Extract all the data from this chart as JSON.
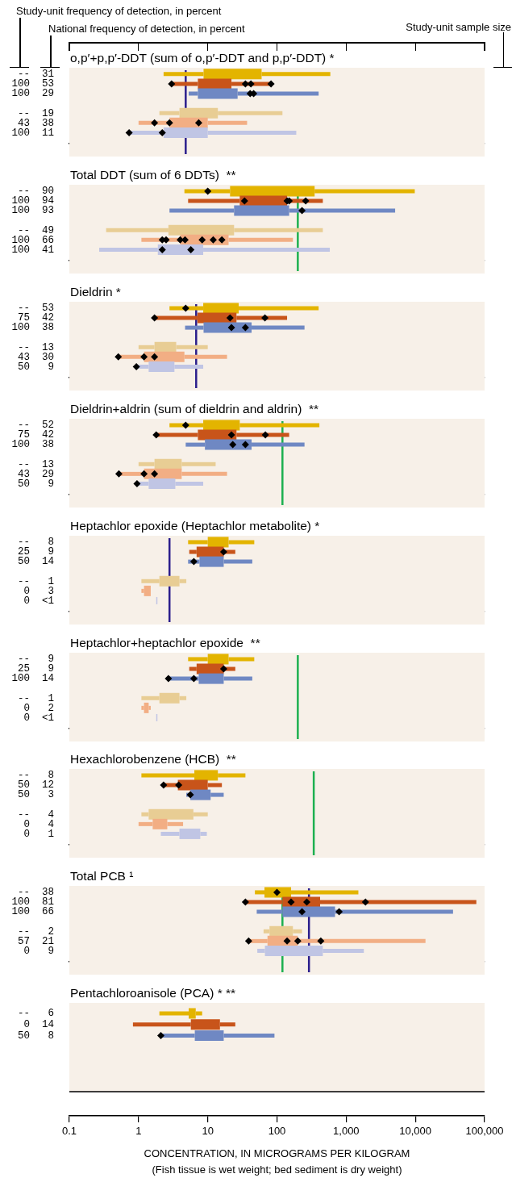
{
  "chart_data": [
    {
      "type": "box",
      "orientation": "horizontal",
      "log": "x",
      "tick_labels": "y",
      "title": "o,p′+p,p′-DDT (sum of o,p′-DDT and p,p′-DDT) *",
      "annotations": [
        "Study-unit frequency of detection, in percent",
        "National frequency of detection, in percent",
        "Study-unit sample size"
      ],
      "xlim": [
        0.1,
        100000
      ],
      "categories": [
        "--  31",
        "100  53",
        "100  29",
        null,
        "--  19",
        "43  38",
        "100  11"
      ],
      "colors": [
        "#e3b400",
        "#c8541a",
        "#6f88c3",
        null,
        "#e8cd94",
        "#f2ae84",
        "#c0c5e4"
      ],
      "boxes": [
        {
          "low": 2.3,
          "q1": 8.7,
          "q3": 60,
          "high": 590
        },
        {
          "low": 2.9,
          "q1": 7.2,
          "q3": 22,
          "high": 82
        },
        {
          "low": 5.3,
          "q1": 7.2,
          "q3": 27,
          "high": 400
        },
        null,
        {
          "low": 2.0,
          "q1": 3.9,
          "q3": 14,
          "high": 120
        },
        {
          "low": 1.0,
          "q1": 2.8,
          "q3": 10,
          "high": 37
        },
        {
          "low": 0.73,
          "q1": 2.3,
          "q3": 10,
          "high": 190
        }
      ],
      "series": [
        {
          "type": "scatter",
          "marker": "diamond",
          "color": "#000000",
          "x": [
            "100  53",
            "100  53",
            "100  53",
            "100  53",
            "100  29",
            "100  29",
            "43  38",
            "43  38",
            "43  38",
            "100  11",
            "100  11"
          ],
          "values": [
            3.0,
            35,
            42,
            82,
            41,
            46,
            1.7,
            2.8,
            7.4,
            0.73,
            2.2
          ]
        }
      ],
      "ref_lines": [
        {
          "axis": "x",
          "value": 4.8,
          "color": "#2b1e8c"
        }
      ]
    },
    {
      "type": "box",
      "orientation": "horizontal",
      "log": "x",
      "tick_labels": "y",
      "title": "Total DDT (sum of 6 DDTs)  **",
      "xlim": [
        0.1,
        100000
      ],
      "categories": [
        "--  90",
        "100  94",
        "100  93",
        null,
        "--  49",
        "100  66",
        "100  41"
      ],
      "colors": [
        "#e3b400",
        "#c8541a",
        "#6f88c3",
        null,
        "#e8cd94",
        "#f2ae84",
        "#c0c5e4"
      ],
      "boxes": [
        {
          "low": 4.6,
          "q1": 21,
          "q3": 350,
          "high": 9800
        },
        {
          "low": 5.2,
          "q1": 29,
          "q3": 140,
          "high": 460
        },
        {
          "low": 2.8,
          "q1": 24,
          "q3": 150,
          "high": 5100
        },
        null,
        {
          "low": 0.34,
          "q1": 2.7,
          "q3": 24,
          "high": 460
        },
        {
          "low": 1.1,
          "q1": 4.0,
          "q3": 20,
          "high": 170
        },
        {
          "low": 0.27,
          "q1": 1.9,
          "q3": 8.6,
          "high": 580
        }
      ],
      "series": [
        {
          "type": "scatter",
          "marker": "diamond",
          "color": "#000000",
          "x": [
            "--  90",
            "100  94",
            "100  94",
            "100  94",
            "100  94",
            "100  93",
            "100  66",
            "100  66",
            "100  66",
            "100  66",
            "100  66",
            "100  66",
            "100  66",
            "100  41",
            "100  41"
          ],
          "values": [
            10,
            34,
            140,
            150,
            260,
            230,
            2.2,
            2.5,
            4.0,
            4.7,
            8.3,
            12,
            16,
            2.2,
            5.7
          ]
        }
      ],
      "ref_lines": [
        {
          "axis": "x",
          "value": 200,
          "color": "#1db050"
        }
      ]
    },
    {
      "type": "box",
      "orientation": "horizontal",
      "log": "x",
      "tick_labels": "y",
      "title": "Dieldrin *",
      "xlim": [
        0.1,
        100000
      ],
      "categories": [
        "--  53",
        "75  42",
        "100  38",
        null,
        "--  13",
        "43  30",
        "50   9"
      ],
      "colors": [
        "#e3b400",
        "#c8541a",
        "#6f88c3",
        null,
        "#e8cd94",
        "#f2ae84",
        "#c0c5e4"
      ],
      "boxes": [
        {
          "low": 2.8,
          "q1": 8.6,
          "q3": 28,
          "high": 400
        },
        {
          "low": 1.7,
          "q1": 7.1,
          "q3": 26,
          "high": 140
        },
        {
          "low": 4.7,
          "q1": 8.7,
          "q3": 43,
          "high": 250
        },
        null,
        {
          "low": 1.0,
          "q1": 1.7,
          "q3": 3.5,
          "high": 10
        },
        {
          "low": 0.51,
          "q1": 1.2,
          "q3": 4.6,
          "high": 19
        },
        {
          "low": 0.93,
          "q1": 1.4,
          "q3": 3.3,
          "high": 8.6
        }
      ],
      "series": [
        {
          "type": "scatter",
          "marker": "diamond",
          "color": "#000000",
          "x": [
            "--  53",
            "75  42",
            "75  42",
            "75  42",
            "100  38",
            "100  38",
            "43  30",
            "43  30",
            "43  30",
            "50   9"
          ],
          "values": [
            4.8,
            1.7,
            21,
            67,
            22,
            35,
            0.51,
            1.2,
            1.7,
            0.93
          ]
        }
      ],
      "ref_lines": [
        {
          "axis": "x",
          "value": 6.8,
          "color": "#2b1e8c"
        }
      ]
    },
    {
      "type": "box",
      "orientation": "horizontal",
      "log": "x",
      "tick_labels": "y",
      "title": "Dieldrin+aldrin (sum of dieldrin and aldrin)  **",
      "xlim": [
        0.1,
        100000
      ],
      "categories": [
        "--  52",
        "75  42",
        "100  38",
        null,
        "--  13",
        "43  29",
        "50   9"
      ],
      "colors": [
        "#e3b400",
        "#c8541a",
        "#6f88c3",
        null,
        "#e8cd94",
        "#f2ae84",
        "#c0c5e4"
      ],
      "boxes": [
        {
          "low": 2.8,
          "q1": 8.6,
          "q3": 29,
          "high": 410
        },
        {
          "low": 1.8,
          "q1": 7.2,
          "q3": 26,
          "high": 150
        },
        {
          "low": 4.8,
          "q1": 9.1,
          "q3": 43,
          "high": 250
        },
        null,
        {
          "low": 1.0,
          "q1": 1.7,
          "q3": 4.2,
          "high": 13
        },
        {
          "low": 0.52,
          "q1": 1.2,
          "q3": 4.2,
          "high": 19
        },
        {
          "low": 0.95,
          "q1": 1.4,
          "q3": 3.4,
          "high": 8.6
        }
      ],
      "series": [
        {
          "type": "scatter",
          "marker": "diamond",
          "color": "#000000",
          "x": [
            "--  52",
            "75  42",
            "75  42",
            "75  42",
            "100  38",
            "100  38",
            "43  29",
            "43  29",
            "43  29",
            "50   9"
          ],
          "values": [
            4.8,
            1.8,
            22,
            68,
            23,
            35,
            0.52,
            1.2,
            1.7,
            0.95
          ]
        }
      ],
      "ref_lines": [
        {
          "axis": "x",
          "value": 120,
          "color": "#1db050"
        }
      ]
    },
    {
      "type": "box",
      "orientation": "horizontal",
      "log": "x",
      "tick_labels": "y",
      "title": "Heptachlor epoxide (Heptachlor metabolite) *",
      "xlim": [
        0.1,
        100000
      ],
      "categories": [
        "--   8",
        "25   9",
        "50  14",
        null,
        "--   1",
        "0   3",
        "0  <1"
      ],
      "colors": [
        "#e3b400",
        "#c8541a",
        "#6f88c3",
        null,
        "#e8cd94",
        "#f2ae84",
        "#c0c5e4"
      ],
      "boxes": [
        {
          "low": 5.2,
          "q1": 10,
          "q3": 20,
          "high": 47
        },
        {
          "low": 5.4,
          "q1": 6.9,
          "q3": 17,
          "high": 25
        },
        {
          "low": 5.2,
          "q1": 7.6,
          "q3": 17,
          "high": 44
        },
        null,
        {
          "low": 1.1,
          "q1": 2.0,
          "q3": 3.9,
          "high": 4.9
        },
        {
          "low": 1.1,
          "q1": 1.2,
          "q3": 1.5,
          "high": 1.5
        },
        {
          "low": 1.8,
          "q1": 1.8,
          "q3": 1.8,
          "high": 1.8
        }
      ],
      "series": [
        {
          "type": "scatter",
          "marker": "diamond",
          "color": "#000000",
          "x": [
            "25   9",
            "50  14"
          ],
          "values": [
            17,
            6.3
          ]
        }
      ],
      "ref_lines": [
        {
          "axis": "x",
          "value": 2.8,
          "color": "#2b1e8c"
        }
      ]
    },
    {
      "type": "box",
      "orientation": "horizontal",
      "log": "x",
      "tick_labels": "y",
      "title": "Heptachlor+heptachlor epoxide  **",
      "xlim": [
        0.1,
        100000
      ],
      "categories": [
        "--   9",
        "25   9",
        "100  14",
        null,
        "--   1",
        "0   2",
        "0  <1"
      ],
      "colors": [
        "#e3b400",
        "#c8541a",
        "#6f88c3",
        null,
        "#e8cd94",
        "#f2ae84",
        "#c0c5e4"
      ],
      "boxes": [
        {
          "low": 5.2,
          "q1": 10,
          "q3": 20,
          "high": 47
        },
        {
          "low": 5.4,
          "q1": 6.9,
          "q3": 17,
          "high": 25
        },
        {
          "low": 2.7,
          "q1": 7.4,
          "q3": 17,
          "high": 44
        },
        null,
        {
          "low": 1.1,
          "q1": 2.0,
          "q3": 3.9,
          "high": 4.9
        },
        {
          "low": 1.1,
          "q1": 1.2,
          "q3": 1.4,
          "high": 1.5
        },
        {
          "low": 1.8,
          "q1": 1.8,
          "q3": 1.8,
          "high": 1.8
        }
      ],
      "series": [
        {
          "type": "scatter",
          "marker": "diamond",
          "color": "#000000",
          "x": [
            "25   9",
            "100  14",
            "100  14"
          ],
          "values": [
            17,
            2.7,
            6.3
          ]
        }
      ],
      "ref_lines": [
        {
          "axis": "x",
          "value": 200,
          "color": "#1db050"
        }
      ]
    },
    {
      "type": "box",
      "orientation": "horizontal",
      "log": "x",
      "tick_labels": "y",
      "title": "Hexachlorobenzene (HCB)  **",
      "xlim": [
        0.1,
        100000
      ],
      "categories": [
        "--   8",
        "50  12",
        "50   3",
        null,
        "--   4",
        "0   4",
        "0   1"
      ],
      "colors": [
        "#e3b400",
        "#c8541a",
        "#6f88c3",
        null,
        "#e8cd94",
        "#f2ae84",
        "#c0c5e4"
      ],
      "boxes": [
        {
          "low": 1.1,
          "q1": 6.4,
          "q3": 14,
          "high": 35
        },
        {
          "low": 2.3,
          "q1": 3.7,
          "q3": 10,
          "high": 16
        },
        {
          "low": 4.9,
          "q1": 5.6,
          "q3": 11,
          "high": 17
        },
        null,
        {
          "low": 1.1,
          "q1": 1.4,
          "q3": 6.2,
          "high": 10
        },
        {
          "low": 1.0,
          "q1": 1.6,
          "q3": 2.6,
          "high": 4.4
        },
        {
          "low": 2.1,
          "q1": 3.9,
          "q3": 7.8,
          "high": 9.7
        }
      ],
      "series": [
        {
          "type": "scatter",
          "marker": "diamond",
          "color": "#000000",
          "x": [
            "50  12",
            "50  12",
            "50   3"
          ],
          "values": [
            2.3,
            3.8,
            5.6
          ]
        }
      ],
      "ref_lines": [
        {
          "axis": "x",
          "value": 340,
          "color": "#1db050"
        }
      ]
    },
    {
      "type": "box",
      "orientation": "horizontal",
      "log": "x",
      "tick_labels": "y",
      "title": "Total PCB ¹",
      "xlim": [
        0.1,
        100000
      ],
      "categories": [
        "--  38",
        "100  81",
        "100  66",
        null,
        "--   2",
        "57  21",
        "0   9"
      ],
      "colors": [
        "#e3b400",
        "#c8541a",
        "#6f88c3",
        null,
        "#e8cd94",
        "#f2ae84",
        "#c0c5e4"
      ],
      "boxes": [
        {
          "low": 48,
          "q1": 66,
          "q3": 160,
          "high": 1500
        },
        {
          "low": 35,
          "q1": 120,
          "q3": 420,
          "high": 76000
        },
        {
          "low": 51,
          "q1": 120,
          "q3": 690,
          "high": 35000
        },
        null,
        {
          "low": 64,
          "q1": 78,
          "q3": 170,
          "high": 230
        },
        {
          "low": 39,
          "q1": 73,
          "q3": 200,
          "high": 14000
        },
        {
          "low": 52,
          "q1": 67,
          "q3": 460,
          "high": 1800
        }
      ],
      "series": [
        {
          "type": "scatter",
          "marker": "diamond",
          "color": "#000000",
          "x": [
            "--  38",
            "100  81",
            "100  81",
            "100  81",
            "100  81",
            "100  66",
            "100  66",
            "57  21",
            "57  21",
            "57  21",
            "57  21"
          ],
          "values": [
            100,
            35,
            160,
            270,
            1900,
            230,
            790,
            39,
            140,
            200,
            430
          ]
        }
      ],
      "ref_lines": [
        {
          "axis": "x",
          "value": 120,
          "color": "#1db050"
        },
        {
          "axis": "x",
          "value": 290,
          "color": "#2b1e8c"
        }
      ]
    },
    {
      "type": "box",
      "orientation": "horizontal",
      "log": "x",
      "title": "Pentachloroanisole (PCA) * **",
      "xlabel": "CONCENTRATION, IN MICROGRAMS PER KILOGRAM",
      "annotations": [
        "(Fish tissue is wet weight; bed sediment is dry weight)"
      ],
      "xlim": [
        0.1,
        100000
      ],
      "xticks": [
        {
          "value": 0.1,
          "label": "0.1"
        },
        {
          "value": 1,
          "label": "1"
        },
        {
          "value": 10,
          "label": "10"
        },
        {
          "value": 100,
          "label": "100"
        },
        {
          "value": 1000,
          "label": "1,000"
        },
        {
          "value": 10000,
          "label": "10,000"
        },
        {
          "value": 100000,
          "label": "100,000"
        }
      ],
      "categories": [
        "--   6",
        "0  14",
        "50   8",
        null,
        null,
        null,
        null
      ],
      "colors": [
        "#e3b400",
        "#c8541a",
        "#6f88c3",
        null,
        null,
        null,
        null
      ],
      "boxes": [
        {
          "low": 2.0,
          "q1": 5.3,
          "q3": 6.7,
          "high": 8.3
        },
        {
          "low": 0.83,
          "q1": 5.7,
          "q3": 15,
          "high": 25
        },
        {
          "low": 2.1,
          "q1": 6.5,
          "q3": 17,
          "high": 92
        },
        null,
        null,
        null,
        null
      ],
      "series": [
        {
          "type": "scatter",
          "marker": "diamond",
          "color": "#000000",
          "x": [
            "50   8"
          ],
          "values": [
            2.1
          ]
        }
      ]
    }
  ]
}
